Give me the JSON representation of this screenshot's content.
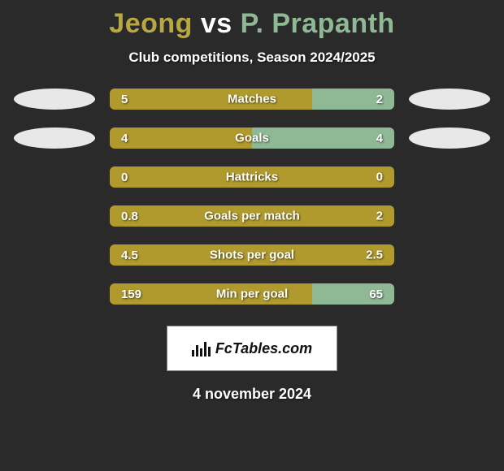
{
  "title": {
    "player1": "Jeong",
    "vs": "vs",
    "player2": "P. Prapanth",
    "player1_color": "#b8a842",
    "player2_color": "#8fb894",
    "fontsize": 34
  },
  "subtitle": "Club competitions, Season 2024/2025",
  "background_color": "#2a2a2a",
  "bar_left_color": "#b09a2e",
  "bar_right_color": "#8fb894",
  "oval_color": "#e8e8e8",
  "text_color": "#ffffff",
  "stats": [
    {
      "label": "Matches",
      "left_val": "5",
      "right_val": "2",
      "left_pct": 71,
      "right_pct": 29,
      "show_ovals": true
    },
    {
      "label": "Goals",
      "left_val": "4",
      "right_val": "4",
      "left_pct": 50,
      "right_pct": 50,
      "show_ovals": true
    },
    {
      "label": "Hattricks",
      "left_val": "0",
      "right_val": "0",
      "left_pct": 100,
      "right_pct": 0,
      "show_ovals": false
    },
    {
      "label": "Goals per match",
      "left_val": "0.8",
      "right_val": "2",
      "left_pct": 100,
      "right_pct": 0,
      "show_ovals": false
    },
    {
      "label": "Shots per goal",
      "left_val": "4.5",
      "right_val": "2.5",
      "left_pct": 100,
      "right_pct": 0,
      "show_ovals": false
    },
    {
      "label": "Min per goal",
      "left_val": "159",
      "right_val": "65",
      "left_pct": 71,
      "right_pct": 29,
      "show_ovals": false
    }
  ],
  "logo_text": "FcTables.com",
  "date": "4 november 2024"
}
